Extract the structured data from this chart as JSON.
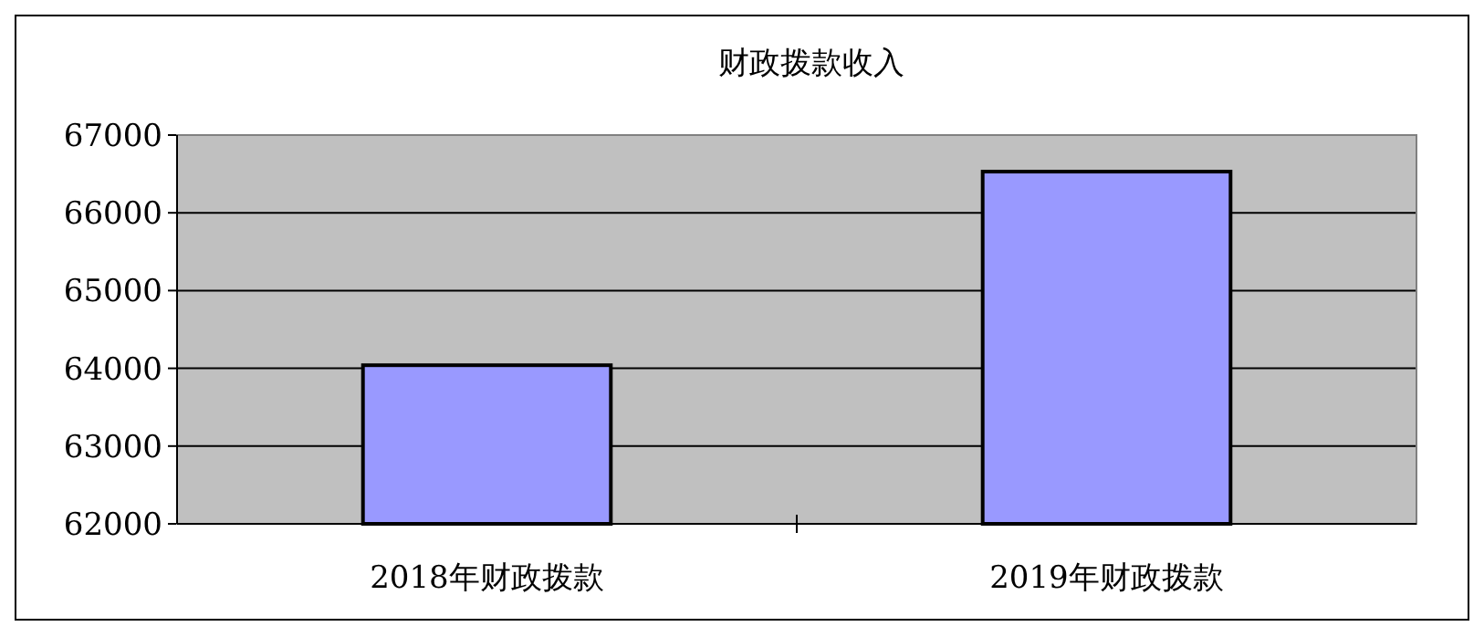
{
  "chart_data": {
    "type": "bar",
    "title": "财政拨款收入",
    "categories": [
      "2018年财政拨款",
      "2019年财政拨款"
    ],
    "values": [
      64040,
      66530
    ],
    "color": "#9999ff",
    "ylim": [
      62000,
      67000
    ],
    "yticks": [
      62000,
      63000,
      64000,
      65000,
      66000,
      67000
    ],
    "grid": "y"
  }
}
